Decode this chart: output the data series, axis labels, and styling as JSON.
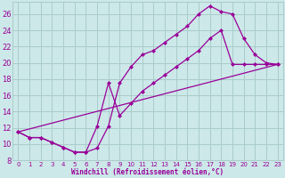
{
  "xlabel": "Windchill (Refroidissement éolien,°C)",
  "bg_color": "#cce8e8",
  "grid_color": "#aacccc",
  "line_color": "#990099",
  "xlim": [
    -0.5,
    23.5
  ],
  "ylim": [
    8,
    27.5
  ],
  "xticks": [
    0,
    1,
    2,
    3,
    4,
    5,
    6,
    7,
    8,
    9,
    10,
    11,
    12,
    13,
    14,
    15,
    16,
    17,
    18,
    19,
    20,
    21,
    22,
    23
  ],
  "yticks": [
    8,
    10,
    12,
    14,
    16,
    18,
    20,
    22,
    24,
    26
  ],
  "line1_x": [
    0,
    1,
    2,
    3,
    4,
    5,
    6,
    7,
    8,
    9,
    10,
    11,
    12,
    13,
    14,
    15,
    16,
    17,
    18,
    19,
    20,
    21,
    22,
    23
  ],
  "line1_y": [
    11.5,
    10.8,
    10.8,
    10.2,
    9.6,
    9.0,
    9.0,
    9.5,
    12.2,
    17.5,
    19.5,
    21.0,
    21.5,
    22.5,
    23.5,
    24.5,
    26.0,
    27.0,
    26.3,
    26.0,
    23.0,
    21.0,
    20.0,
    19.8
  ],
  "line2_x": [
    0,
    1,
    2,
    3,
    4,
    5,
    6,
    7,
    8,
    9,
    10,
    11,
    12,
    13,
    14,
    15,
    16,
    17,
    18,
    19,
    20,
    21,
    22,
    23
  ],
  "line2_y": [
    11.5,
    10.8,
    10.8,
    10.2,
    9.6,
    9.0,
    9.0,
    12.2,
    17.5,
    13.5,
    15.0,
    16.5,
    17.5,
    18.5,
    19.5,
    20.5,
    21.5,
    23.0,
    24.0,
    19.8,
    19.8,
    19.8,
    19.8,
    19.8
  ],
  "line3_x": [
    0,
    23
  ],
  "line3_y": [
    11.5,
    19.8
  ]
}
